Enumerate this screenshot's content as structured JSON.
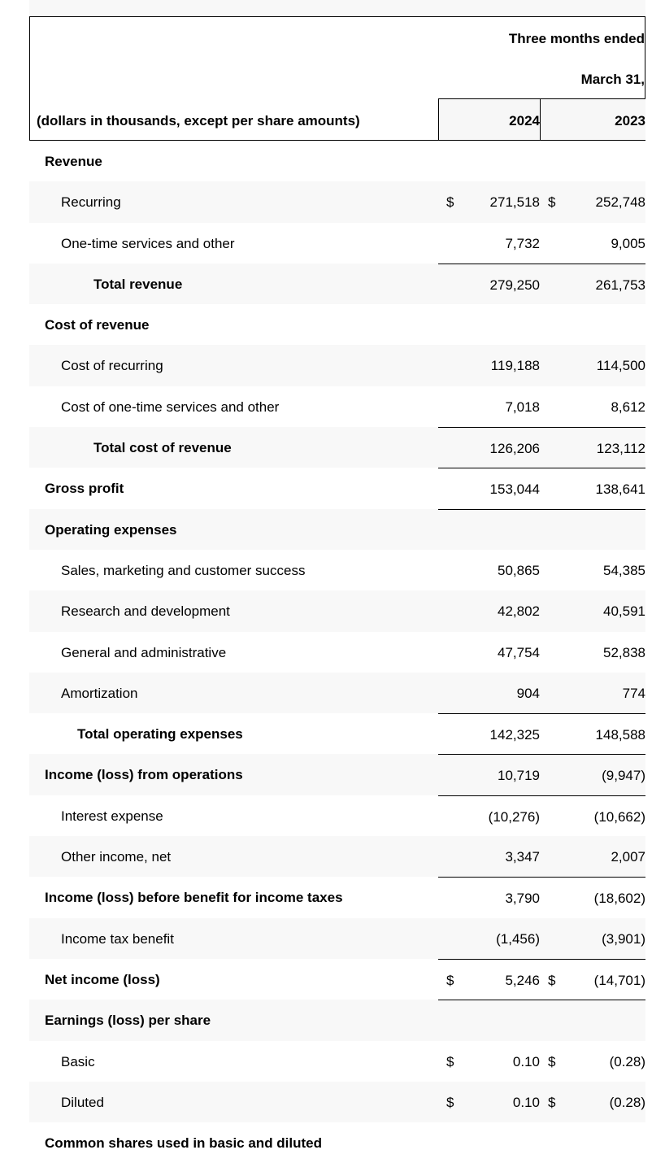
{
  "header": {
    "period": "Three months ended",
    "date": "March 31,",
    "units": "(dollars in thousands, except per share amounts)",
    "years": [
      "2024",
      "2023"
    ]
  },
  "rows": [
    {
      "label": "Revenue",
      "level": 0,
      "bold": true
    },
    {
      "label": "Recurring",
      "level": 1,
      "d1": "$",
      "v1": "271,518",
      "d2": "$",
      "v2": "252,748"
    },
    {
      "label": "One-time services and other",
      "level": 1,
      "v1": "7,732",
      "v2": "9,005"
    },
    {
      "label": "Total revenue",
      "level": 3,
      "bold": true,
      "v1": "279,250",
      "v2": "261,753",
      "line": true
    },
    {
      "label": "Cost of revenue",
      "level": 0,
      "bold": true
    },
    {
      "label": "Cost of recurring",
      "level": 1,
      "v1": "119,188",
      "v2": "114,500"
    },
    {
      "label": "Cost of one-time services and other",
      "level": 1,
      "v1": "7,018",
      "v2": "8,612"
    },
    {
      "label": "Total cost of revenue",
      "level": 3,
      "bold": true,
      "v1": "126,206",
      "v2": "123,112",
      "line": true
    },
    {
      "label": "Gross profit",
      "level": 0,
      "bold": true,
      "v1": "153,044",
      "v2": "138,641",
      "line": true
    },
    {
      "label": "Operating expenses",
      "level": 0,
      "bold": true,
      "line": true
    },
    {
      "label": "Sales, marketing and customer success",
      "level": 1,
      "v1": "50,865",
      "v2": "54,385"
    },
    {
      "label": "Research and development",
      "level": 1,
      "v1": "42,802",
      "v2": "40,591"
    },
    {
      "label": "General and administrative",
      "level": 1,
      "v1": "47,754",
      "v2": "52,838"
    },
    {
      "label": "Amortization",
      "level": 1,
      "v1": "904",
      "v2": "774"
    },
    {
      "label": "Total operating expenses",
      "level": 2,
      "bold": true,
      "v1": "142,325",
      "v2": "148,588",
      "line": true
    },
    {
      "label": "Income (loss) from operations",
      "level": 0,
      "bold": true,
      "v1": "10,719",
      "v2": "(9,947)",
      "line": true
    },
    {
      "label": "Interest expense",
      "level": 1,
      "v1": "(10,276)",
      "v2": "(10,662)",
      "line": true
    },
    {
      "label": "Other income, net",
      "level": 1,
      "v1": "3,347",
      "v2": "2,007"
    },
    {
      "label": "Income (loss) before benefit for income taxes",
      "level": 0,
      "bold": true,
      "v1": "3,790",
      "v2": "(18,602)",
      "line": true
    },
    {
      "label": "Income tax benefit",
      "level": 1,
      "v1": "(1,456)",
      "v2": "(3,901)"
    },
    {
      "label": "Net income (loss)",
      "level": 0,
      "bold": true,
      "d1": "$",
      "v1": "5,246",
      "d2": "$",
      "v2": "(14,701)",
      "line": true
    },
    {
      "label": "Earnings (loss) per share",
      "level": 0,
      "bold": true,
      "line": true
    },
    {
      "label": "Basic",
      "level": 1,
      "d1": "$",
      "v1": "0.10",
      "d2": "$",
      "v2": "(0.28)"
    },
    {
      "label": "Diluted",
      "level": 1,
      "d1": "$",
      "v1": "0.10",
      "d2": "$",
      "v2": "(0.28)"
    },
    {
      "label": "Common shares used in basic and diluted",
      "level": 0,
      "bold": true
    }
  ]
}
